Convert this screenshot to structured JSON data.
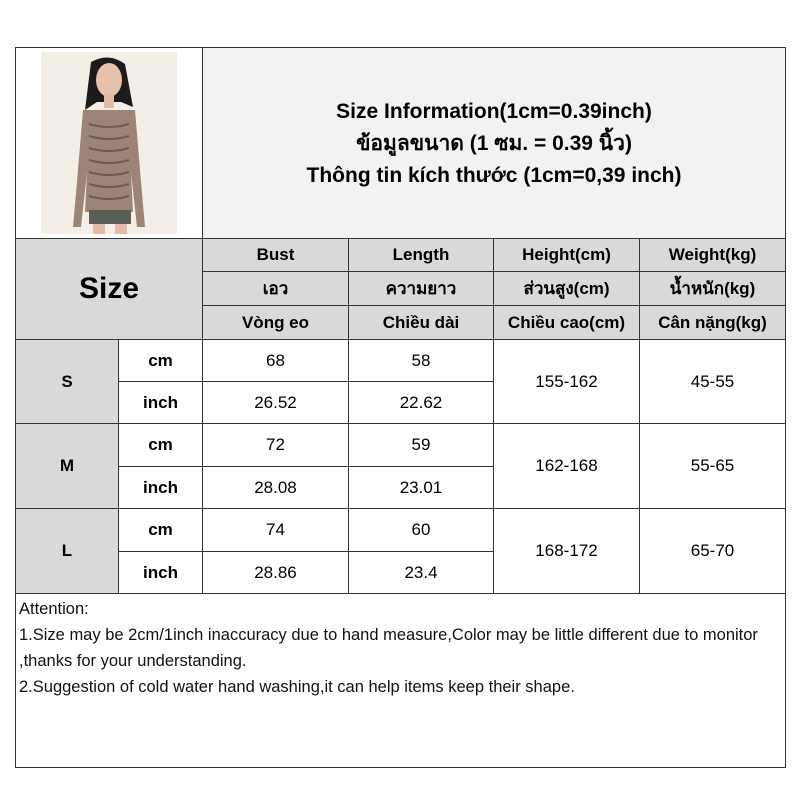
{
  "title": {
    "line1": "Size Information(1cm=0.39inch)",
    "line2": "ข้อมูลขนาด (1 ซม. = 0.39 นิ้ว)",
    "line3": "Thông tin kích thước (1cm=0,39 inch)"
  },
  "size_label": "Size",
  "headers": [
    [
      "Bust",
      "Length",
      "Height(cm)",
      "Weight(kg)"
    ],
    [
      "เอว",
      "ความยาว",
      "ส่วนสูง(cm)",
      "น้ำหนัก(kg)"
    ],
    [
      "Vòng eo",
      "Chiều dài",
      "Chiều cao(cm)",
      "Cân nặng(kg)"
    ]
  ],
  "rows": [
    {
      "size": "S",
      "cm_label": "cm",
      "inch_label": "inch",
      "bust_cm": "68",
      "length_cm": "58",
      "bust_inch": "26.52",
      "length_inch": "22.62",
      "height": "155-162",
      "weight": "45-55"
    },
    {
      "size": "M",
      "cm_label": "cm",
      "inch_label": "inch",
      "bust_cm": "72",
      "length_cm": "59",
      "bust_inch": "28.08",
      "length_inch": "23.01",
      "height": "162-168",
      "weight": "55-65"
    },
    {
      "size": "L",
      "cm_label": "cm",
      "inch_label": "inch",
      "bust_cm": "74",
      "length_cm": "60",
      "bust_inch": "28.86",
      "length_inch": "23.4",
      "height": "168-172",
      "weight": "65-70"
    }
  ],
  "attention": {
    "heading": "Attention:",
    "line1": "1.Size may be 2cm/1inch inaccuracy due to hand measure,Color may be little different due to monitor ,thanks for your understanding.",
    "line2": "2.Suggestion of cold water hand washing,it can help items keep their shape."
  },
  "colors": {
    "header_gray": "#d9d9d9",
    "title_bg": "#f2f2f2",
    "garment": "#9c8477"
  }
}
